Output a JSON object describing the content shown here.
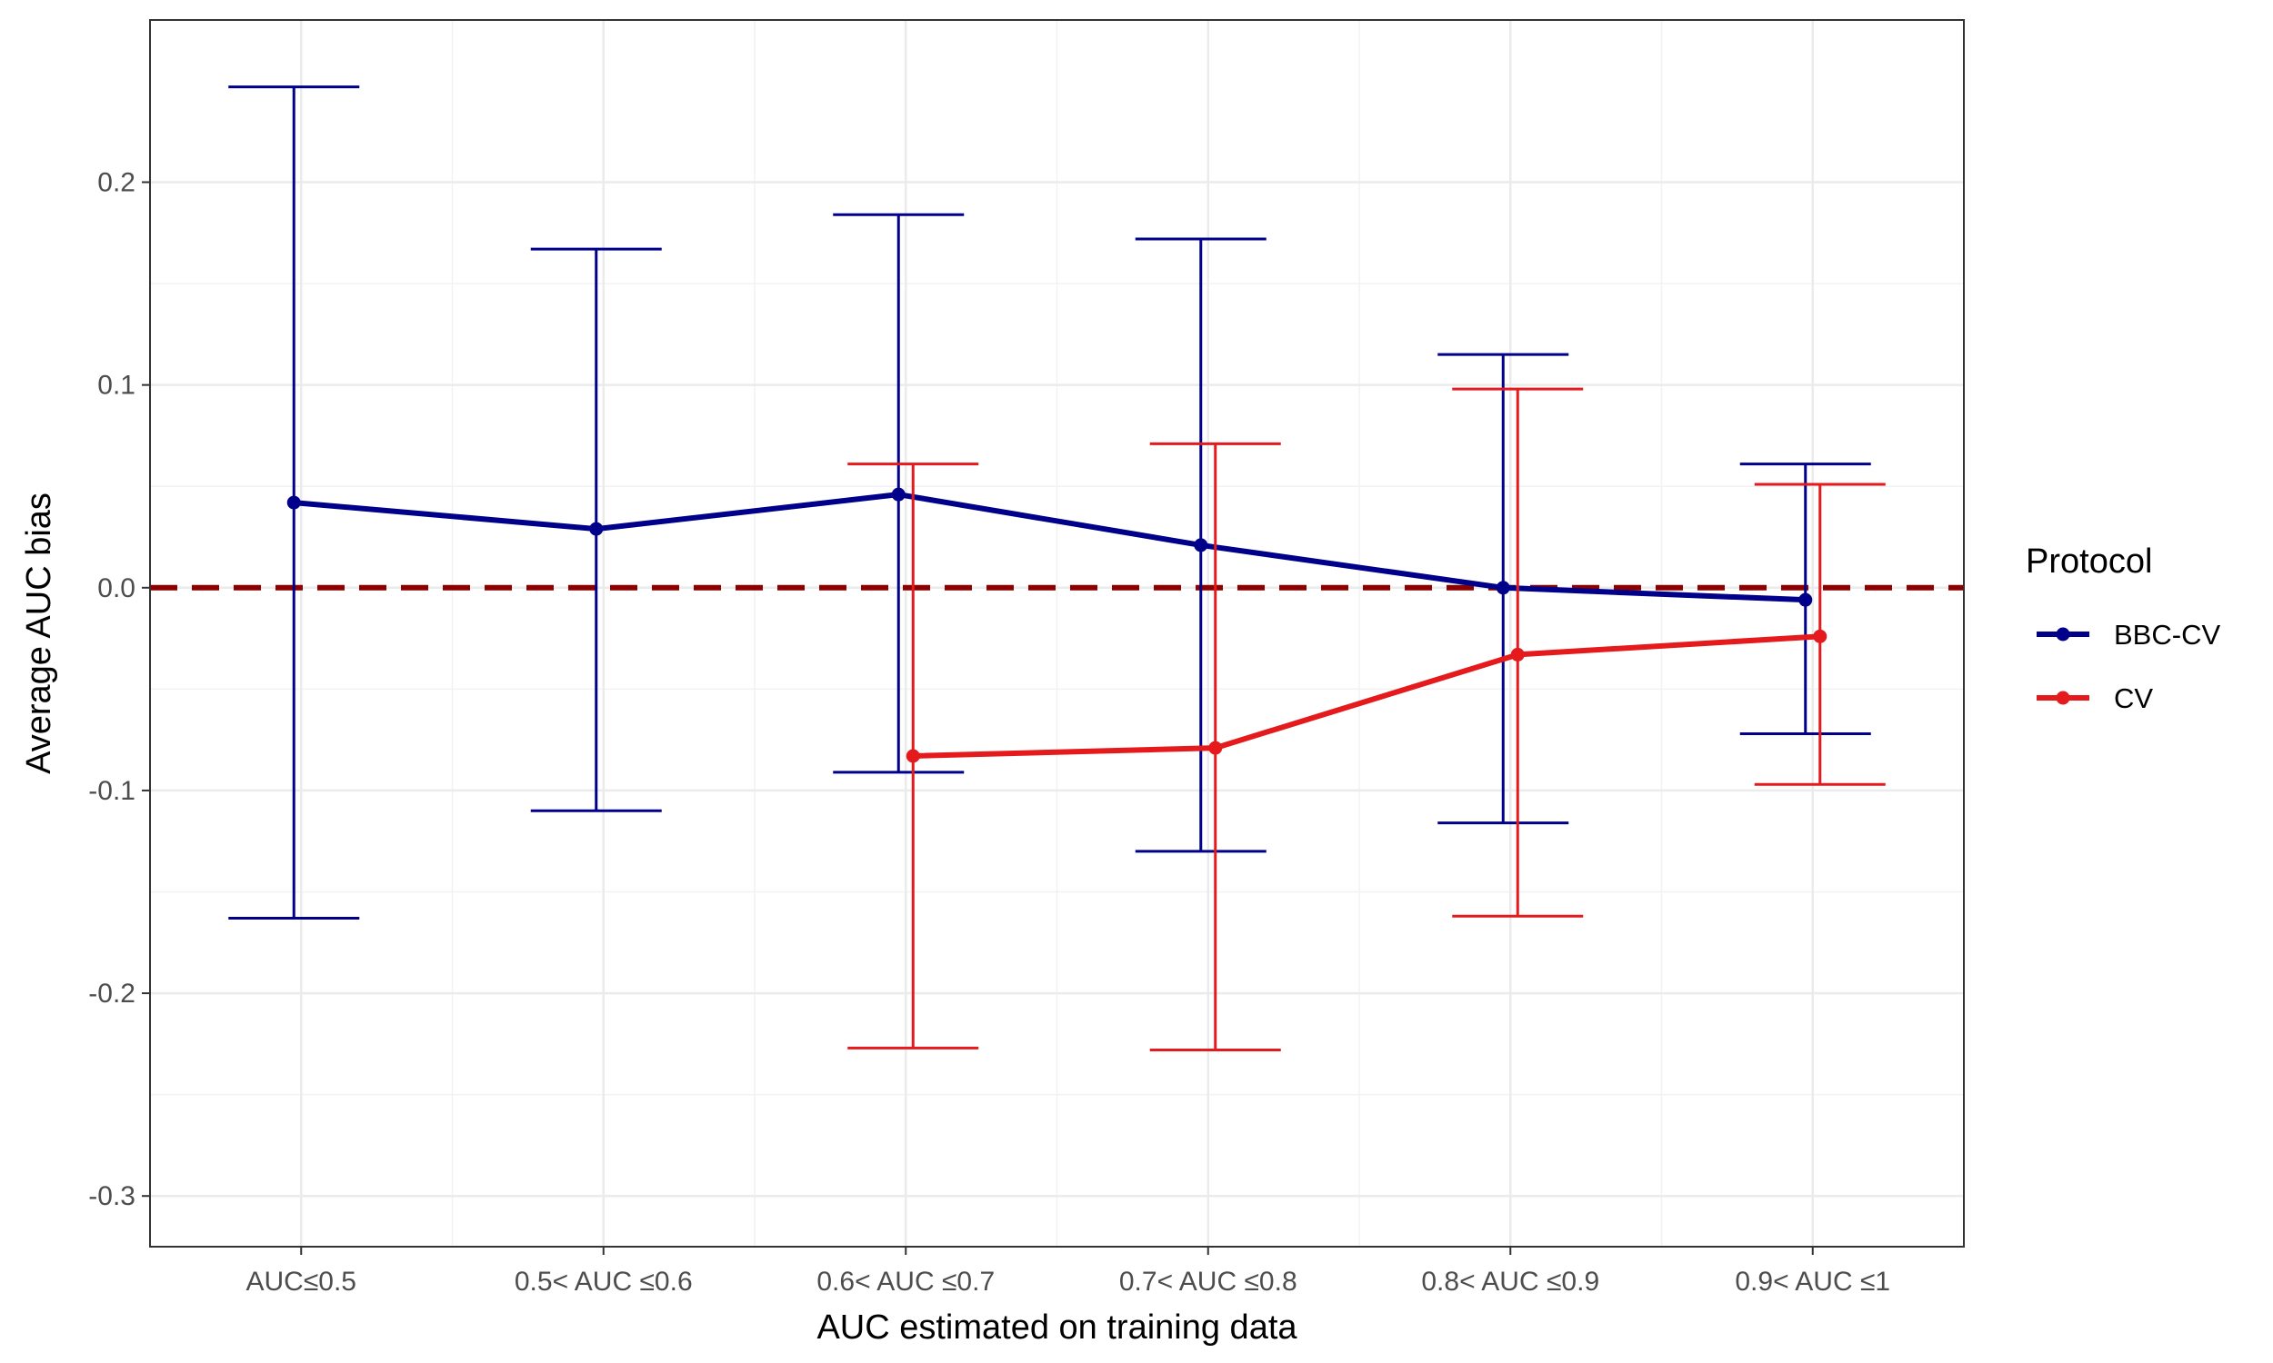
{
  "chart_data": {
    "type": "line",
    "title": "",
    "xlabel": "AUC estimated on training data",
    "ylabel": "Average AUC bias",
    "categories": [
      "AUC≤0.5",
      "0.5< AUC ≤0.6",
      "0.6< AUC ≤0.7",
      "0.7< AUC ≤0.8",
      "0.8< AUC ≤0.9",
      "0.9< AUC ≤1"
    ],
    "ylim": [
      -0.325,
      0.28
    ],
    "yticks": [
      -0.3,
      -0.2,
      -0.1,
      0.0,
      0.1,
      0.2
    ],
    "ytick_labels": [
      "-0.3",
      "-0.2",
      "-0.1",
      "0.0",
      "0.1",
      "0.2"
    ],
    "grid": true,
    "reference_line": {
      "y": 0.0,
      "style": "dashed",
      "color": "#8b0000"
    },
    "legend": {
      "title": "Protocol",
      "position": "right"
    },
    "series": [
      {
        "name": "BBC-CV",
        "color": "#00008b",
        "values": [
          0.042,
          0.029,
          0.046,
          0.021,
          0.0,
          -0.006
        ],
        "error_low": [
          -0.163,
          -0.11,
          -0.091,
          -0.13,
          -0.116,
          -0.072
        ],
        "error_high": [
          0.247,
          0.167,
          0.184,
          0.172,
          0.115,
          0.061
        ]
      },
      {
        "name": "CV",
        "color": "#e41a1c",
        "values": [
          null,
          null,
          -0.083,
          -0.079,
          -0.033,
          -0.024
        ],
        "error_low": [
          null,
          null,
          -0.227,
          -0.228,
          -0.162,
          -0.097
        ],
        "error_high": [
          null,
          null,
          0.061,
          0.071,
          0.098,
          0.051
        ]
      }
    ]
  }
}
